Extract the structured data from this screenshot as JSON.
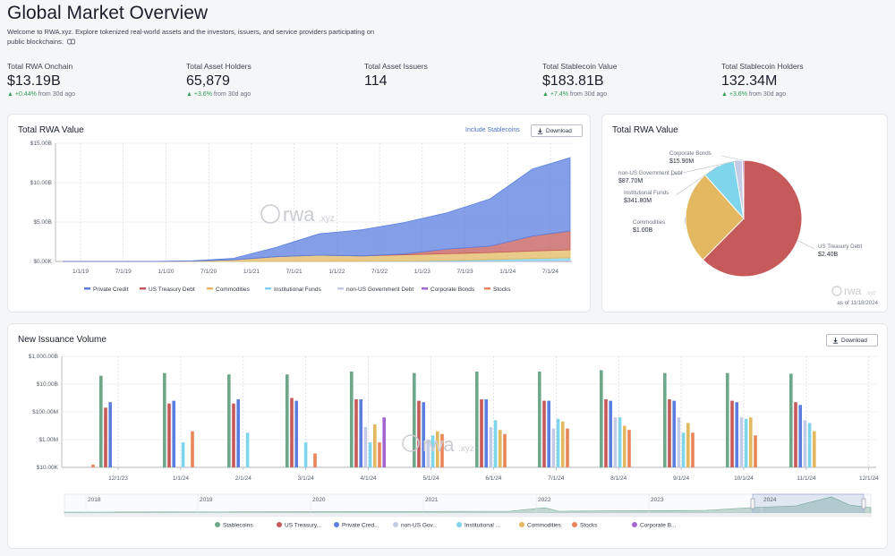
{
  "header": {
    "title": "Global Market Overview",
    "intro": "Welcome to RWA.xyz. Explore tokenized real-world assets and the investors, issuers, and service providers participating on public blockchains.",
    "link_icon": "link-icon"
  },
  "stats": [
    {
      "label": "Total RWA Onchain",
      "value": "$13.19B",
      "delta": "+0.44%",
      "delta_suffix": "from 30d ago"
    },
    {
      "label": "Total Asset Holders",
      "value": "65,879",
      "delta": "+3.6%",
      "delta_suffix": "from 30d ago"
    },
    {
      "label": "Total Asset Issuers",
      "value": "114",
      "delta": "",
      "delta_suffix": ""
    },
    {
      "label": "Total Stablecoin Value",
      "value": "$183.81B",
      "delta": "+7.4%",
      "delta_suffix": "from 30d ago"
    },
    {
      "label": "Total Stablecoin Holders",
      "value": "132.34M",
      "delta": "+3.6%",
      "delta_suffix": "from 30d ago"
    }
  ],
  "rwa_value_panel": {
    "title": "Total RWA Value",
    "include_stablecoins": "Include Stablecoins",
    "download": "Download",
    "watermark": "rwa",
    "watermark_suffix": ".xyz"
  },
  "rwa_pie_panel": {
    "title": "Total RWA Value",
    "watermark": "rwa",
    "watermark_suffix": ".xyz",
    "as_of": "as of 11/18/2024"
  },
  "issuance_panel": {
    "title": "New Issuance Volume",
    "download": "Download",
    "watermark": "rwa",
    "watermark_suffix": ".xyz",
    "navigator_years": [
      "2018",
      "2019",
      "2020",
      "2021",
      "2022",
      "2023",
      "2024"
    ]
  },
  "colors": {
    "private_credit": "#5b7fe0",
    "us_treasury": "#c65a5a",
    "commodities": "#e3b860",
    "institutional_funds": "#7fd6ec",
    "non_us_gov": "#c3cbe6",
    "corporate_bonds": "#a365d1",
    "stocks": "#e9855a",
    "stablecoins": "#6ea88a",
    "up": "#2f9e55"
  },
  "chart_data": [
    {
      "type": "area",
      "title": "Total RWA Value",
      "stacked": true,
      "x": [
        "1/1/19",
        "7/1/19",
        "1/1/20",
        "7/1/20",
        "1/1/21",
        "7/1/21",
        "1/1/22",
        "7/1/22",
        "1/1/23",
        "7/1/23",
        "1/1/24",
        "7/1/24",
        "11/18/24"
      ],
      "x_ticks": [
        "1/1/19",
        "7/1/19",
        "1/1/20",
        "7/1/20",
        "1/1/21",
        "7/1/21",
        "1/1/22",
        "7/1/22",
        "1/1/23",
        "7/1/23",
        "1/1/24",
        "7/1/24"
      ],
      "y_ticks": [
        "$0.00K",
        "$5.00B",
        "$10.00B",
        "$15.00B"
      ],
      "ylim": [
        0,
        15
      ],
      "y_unit": "$B",
      "series": [
        {
          "name": "Stocks",
          "values": [
            0,
            0,
            0,
            0,
            0,
            0,
            0,
            0,
            0,
            0,
            0.01,
            0.01,
            0.02
          ]
        },
        {
          "name": "Corporate Bonds",
          "values": [
            0,
            0,
            0,
            0,
            0,
            0,
            0,
            0,
            0,
            0.01,
            0.01,
            0.01,
            0.02
          ]
        },
        {
          "name": "non-US Government Debt",
          "values": [
            0,
            0,
            0,
            0,
            0,
            0,
            0,
            0,
            0.02,
            0.04,
            0.06,
            0.08,
            0.09
          ]
        },
        {
          "name": "Institutional Funds",
          "values": [
            0,
            0,
            0,
            0,
            0,
            0,
            0,
            0.01,
            0.02,
            0.08,
            0.15,
            0.28,
            0.34
          ]
        },
        {
          "name": "Commodities",
          "values": [
            0,
            0,
            0,
            0.05,
            0.2,
            0.6,
            0.8,
            0.7,
            0.8,
            0.85,
            0.9,
            0.95,
            1.0
          ]
        },
        {
          "name": "US Treasury Debt",
          "values": [
            0,
            0,
            0,
            0,
            0,
            0,
            0,
            0,
            0.1,
            0.6,
            0.8,
            1.9,
            2.4
          ]
        },
        {
          "name": "Private Credit",
          "values": [
            0,
            0,
            0,
            0.02,
            0.2,
            1.2,
            2.7,
            3.3,
            4.0,
            4.6,
            6.0,
            8.5,
            9.3
          ]
        }
      ],
      "legend": [
        "Private Credit",
        "US Treasury Debt",
        "Commodities",
        "Institutional Funds",
        "non-US Government Debt",
        "Corporate Bonds",
        "Stocks"
      ],
      "legend_position": "bottom"
    },
    {
      "type": "pie",
      "title": "Total RWA Value",
      "slices": [
        {
          "name": "US Treasury Debt",
          "value": 2.4,
          "label": "$2.40B"
        },
        {
          "name": "Commodities",
          "value": 1.0,
          "label": "$1.00B"
        },
        {
          "name": "Institutional Funds",
          "value": 0.3418,
          "label": "$341.80M"
        },
        {
          "name": "non-US Government Debt",
          "value": 0.0877,
          "label": "$87.70M"
        },
        {
          "name": "Corporate Bonds",
          "value": 0.0159,
          "label": "$15.90M"
        }
      ]
    },
    {
      "type": "bar",
      "title": "New Issuance Volume",
      "log_scale": true,
      "y_ticks": [
        "$10.00K",
        "$1.00M",
        "$100.00M",
        "$10.00B",
        "$1,000.00B"
      ],
      "ylim_log10": [
        4,
        12
      ],
      "x_ticks": [
        "12/1/23",
        "1/1/24",
        "2/1/24",
        "3/1/24",
        "4/1/24",
        "5/1/24",
        "6/1/24",
        "7/1/24",
        "8/1/24",
        "9/1/24",
        "10/1/24",
        "11/1/24",
        "12/1/24"
      ],
      "categories": [
        "11/23",
        "12/23",
        "1/24",
        "2/24",
        "3/24",
        "4/24",
        "5/24",
        "6/24",
        "7/24",
        "8/24",
        "9/24",
        "10/24",
        "11/24"
      ],
      "series": [
        {
          "name": "Stablecoins",
          "values_log10": [
            null,
            10.6,
            10.8,
            10.7,
            10.7,
            10.9,
            10.8,
            10.9,
            10.9,
            11.0,
            10.8,
            10.8,
            10.75
          ]
        },
        {
          "name": "US Treasury...",
          "values_log10": [
            null,
            8.3,
            8.6,
            8.6,
            9.0,
            8.9,
            8.8,
            8.9,
            8.8,
            8.9,
            8.9,
            8.8,
            8.7
          ]
        },
        {
          "name": "Private Cred...",
          "values_log10": [
            null,
            8.7,
            8.8,
            8.9,
            8.8,
            8.9,
            8.7,
            8.9,
            8.8,
            8.8,
            8.8,
            8.7,
            8.5
          ]
        },
        {
          "name": "non-US Gov...",
          "values_log10": [
            null,
            null,
            null,
            null,
            null,
            6.9,
            6.0,
            6.9,
            6.8,
            7.6,
            7.6,
            7.6,
            7.4
          ]
        },
        {
          "name": "Institutional ...",
          "values_log10": [
            null,
            null,
            5.8,
            6.5,
            5.8,
            5.8,
            6.3,
            7.4,
            7.5,
            7.6,
            6.5,
            7.5,
            7.2
          ]
        },
        {
          "name": "Commodities",
          "values_log10": [
            null,
            null,
            null,
            null,
            null,
            7.1,
            6.6,
            6.7,
            7.3,
            7.0,
            7.2,
            7.6,
            6.6
          ]
        },
        {
          "name": "Stocks",
          "values_log10": [
            4.2,
            null,
            6.6,
            null,
            5.0,
            5.8,
            6.4,
            6.4,
            6.8,
            6.7,
            6.5,
            6.3,
            null
          ]
        },
        {
          "name": "Corporate B...",
          "values_log10": [
            null,
            null,
            null,
            null,
            null,
            7.6,
            null,
            null,
            null,
            null,
            null,
            null,
            null
          ]
        }
      ],
      "legend": [
        "Stablecoins",
        "US Treasury...",
        "Private Cred...",
        "non-US Gov...",
        "Institutional ...",
        "Commodities",
        "Stocks",
        "Corporate B..."
      ],
      "legend_position": "bottom"
    }
  ]
}
